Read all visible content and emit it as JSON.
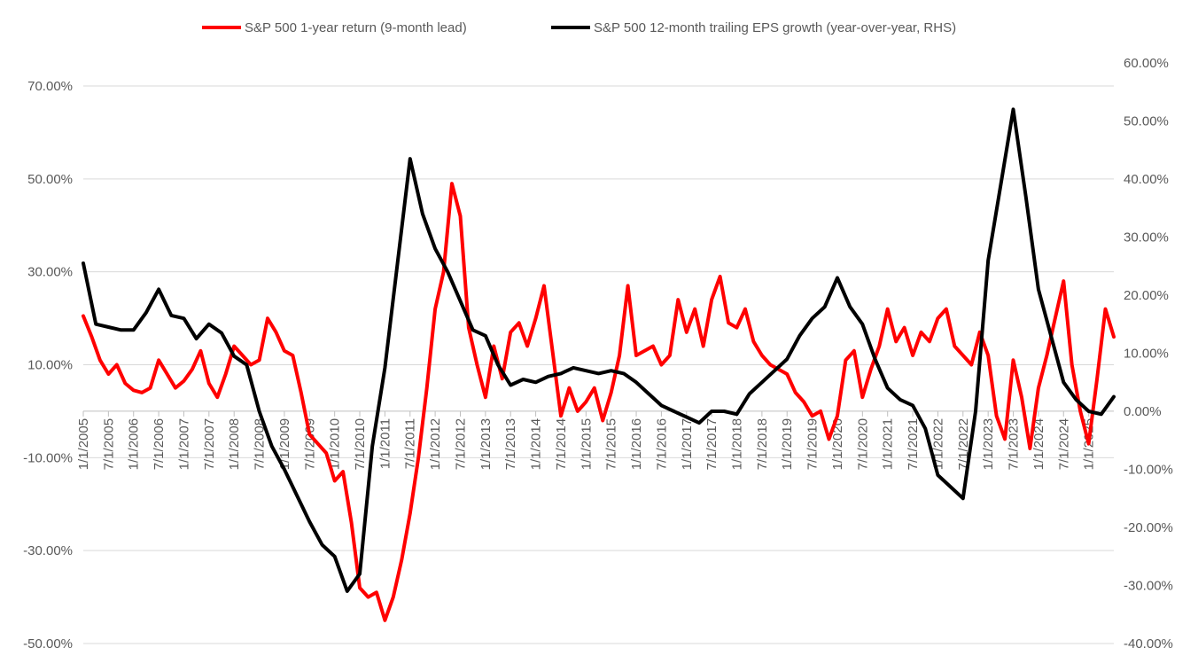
{
  "chart_data": {
    "type": "line",
    "title": "",
    "legend": {
      "position": "top"
    },
    "colors": {
      "red": "#ff0000",
      "black": "#000000",
      "grid": "#d9d9d9",
      "text": "#595959"
    },
    "y_left": {
      "min": -50,
      "max": 70,
      "ticks": [
        "70.00%",
        "50.00%",
        "30.00%",
        "10.00%",
        "-10.00%",
        "-30.00%",
        "-50.00%"
      ],
      "tick_values": [
        70,
        50,
        30,
        10,
        -10,
        -30,
        -50
      ]
    },
    "y_right": {
      "min": -40,
      "max": 60,
      "ticks": [
        "60.00%",
        "50.00%",
        "40.00%",
        "30.00%",
        "20.00%",
        "10.00%",
        "0.00%",
        "-10.00%",
        "-20.00%",
        "-30.00%",
        "-40.00%"
      ],
      "tick_values": [
        60,
        50,
        40,
        30,
        20,
        10,
        0,
        -10,
        -20,
        -30,
        -40
      ]
    },
    "x_ticks": [
      "1/1/2005",
      "7/1/2005",
      "1/1/2006",
      "7/1/2006",
      "1/1/2007",
      "7/1/2007",
      "1/1/2008",
      "7/1/2008",
      "1/1/2009",
      "7/1/2009",
      "1/1/2010",
      "7/1/2010",
      "1/1/2011",
      "7/1/2011",
      "1/1/2012",
      "7/1/2012",
      "1/1/2013",
      "7/1/2013",
      "1/1/2014",
      "7/1/2014",
      "1/1/2015",
      "7/1/2015",
      "1/1/2016",
      "7/1/2016",
      "1/1/2017",
      "7/1/2017",
      "1/1/2018",
      "7/1/2018",
      "1/1/2019",
      "7/1/2019",
      "1/1/2020",
      "7/1/2020",
      "1/1/2021",
      "7/1/2021",
      "1/1/2022",
      "7/1/2022",
      "1/1/2023",
      "7/1/2023",
      "1/1/2024",
      "7/1/2024",
      "1/1/2025"
    ],
    "series": [
      {
        "name": "S&P 500 1-year return (9-month lead)",
        "axis": "left",
        "color": "#ff0000",
        "points": [
          [
            "2005-01",
            20.5
          ],
          [
            "2005-03",
            16
          ],
          [
            "2005-05",
            11
          ],
          [
            "2005-07",
            8
          ],
          [
            "2005-09",
            10
          ],
          [
            "2005-11",
            6
          ],
          [
            "2006-01",
            4.5
          ],
          [
            "2006-03",
            4
          ],
          [
            "2006-05",
            5
          ],
          [
            "2006-07",
            11
          ],
          [
            "2006-09",
            8
          ],
          [
            "2006-11",
            5
          ],
          [
            "2007-01",
            6.5
          ],
          [
            "2007-03",
            9
          ],
          [
            "2007-05",
            13
          ],
          [
            "2007-07",
            6
          ],
          [
            "2007-09",
            3
          ],
          [
            "2007-11",
            8
          ],
          [
            "2008-01",
            14
          ],
          [
            "2008-03",
            12
          ],
          [
            "2008-05",
            10
          ],
          [
            "2008-07",
            11
          ],
          [
            "2008-09",
            20
          ],
          [
            "2008-11",
            17
          ],
          [
            "2009-01",
            13
          ],
          [
            "2009-03",
            12
          ],
          [
            "2009-05",
            4
          ],
          [
            "2009-07",
            -5
          ],
          [
            "2009-09",
            -7
          ],
          [
            "2009-11",
            -9
          ],
          [
            "2010-01",
            -15
          ],
          [
            "2010-03",
            -13
          ],
          [
            "2010-05",
            -24
          ],
          [
            "2010-07",
            -38
          ],
          [
            "2010-09",
            -40
          ],
          [
            "2010-11",
            -39
          ],
          [
            "2011-01",
            -45
          ],
          [
            "2011-03",
            -40
          ],
          [
            "2011-05",
            -32
          ],
          [
            "2011-07",
            -22
          ],
          [
            "2011-09",
            -10
          ],
          [
            "2011-11",
            5
          ],
          [
            "2012-01",
            22
          ],
          [
            "2012-03",
            30
          ],
          [
            "2012-05",
            49
          ],
          [
            "2012-07",
            42
          ],
          [
            "2012-09",
            18
          ],
          [
            "2012-11",
            10
          ],
          [
            "2013-01",
            3
          ],
          [
            "2013-03",
            14
          ],
          [
            "2013-05",
            7
          ],
          [
            "2013-07",
            17
          ],
          [
            "2013-09",
            19
          ],
          [
            "2013-11",
            14
          ],
          [
            "2014-01",
            20
          ],
          [
            "2014-03",
            27
          ],
          [
            "2014-05",
            13
          ],
          [
            "2014-07",
            -1
          ],
          [
            "2014-09",
            5
          ],
          [
            "2014-11",
            0
          ],
          [
            "2015-01",
            2
          ],
          [
            "2015-03",
            5
          ],
          [
            "2015-05",
            -2
          ],
          [
            "2015-07",
            4
          ],
          [
            "2015-09",
            12
          ],
          [
            "2015-11",
            27
          ],
          [
            "2016-01",
            12
          ],
          [
            "2016-03",
            13
          ],
          [
            "2016-05",
            14
          ],
          [
            "2016-07",
            10
          ],
          [
            "2016-09",
            12
          ],
          [
            "2016-11",
            24
          ],
          [
            "2017-01",
            17
          ],
          [
            "2017-03",
            22
          ],
          [
            "2017-05",
            14
          ],
          [
            "2017-07",
            24
          ],
          [
            "2017-09",
            29
          ],
          [
            "2017-11",
            19
          ],
          [
            "2018-01",
            18
          ],
          [
            "2018-03",
            22
          ],
          [
            "2018-05",
            15
          ],
          [
            "2018-07",
            12
          ],
          [
            "2018-09",
            10
          ],
          [
            "2018-11",
            9
          ],
          [
            "2019-01",
            8
          ],
          [
            "2019-03",
            4
          ],
          [
            "2019-05",
            2
          ],
          [
            "2019-07",
            -1
          ],
          [
            "2019-09",
            0
          ],
          [
            "2019-11",
            -6
          ],
          [
            "2020-01",
            -1
          ],
          [
            "2020-03",
            11
          ],
          [
            "2020-05",
            13
          ],
          [
            "2020-07",
            3
          ],
          [
            "2020-09",
            9
          ],
          [
            "2020-11",
            14
          ],
          [
            "2021-01",
            22
          ],
          [
            "2021-03",
            15
          ],
          [
            "2021-05",
            18
          ],
          [
            "2021-07",
            12
          ],
          [
            "2021-09",
            17
          ],
          [
            "2021-11",
            15
          ],
          [
            "2022-01",
            20
          ],
          [
            "2022-03",
            22
          ],
          [
            "2022-05",
            14
          ],
          [
            "2022-07",
            12
          ],
          [
            "2022-09",
            10
          ],
          [
            "2022-11",
            17
          ],
          [
            "2023-01",
            12
          ],
          [
            "2023-03",
            -1
          ],
          [
            "2023-05",
            -6
          ],
          [
            "2023-07",
            11
          ],
          [
            "2023-09",
            3
          ],
          [
            "2023-11",
            -8
          ],
          [
            "2024-01",
            5
          ],
          [
            "2024-03",
            12
          ],
          [
            "2024-05",
            20
          ],
          [
            "2024-07",
            28
          ],
          [
            "2024-09",
            10
          ],
          [
            "2024-11",
            0
          ],
          [
            "2025-01",
            -7
          ],
          [
            "2025-03",
            7
          ],
          [
            "2025-05",
            22
          ],
          [
            "2025-07",
            16
          ]
        ]
      },
      {
        "name": "S&P 500 12-month trailing EPS growth (year-over-year, RHS)",
        "axis": "right",
        "color": "#000000",
        "points": [
          [
            "2005-01",
            25.5
          ],
          [
            "2005-04",
            15
          ],
          [
            "2005-07",
            14.5
          ],
          [
            "2005-10",
            14
          ],
          [
            "2006-01",
            14
          ],
          [
            "2006-04",
            17
          ],
          [
            "2006-07",
            21
          ],
          [
            "2006-10",
            16.5
          ],
          [
            "2007-01",
            16
          ],
          [
            "2007-04",
            12.5
          ],
          [
            "2007-07",
            15
          ],
          [
            "2007-10",
            13.5
          ],
          [
            "2008-01",
            9.5
          ],
          [
            "2008-04",
            8
          ],
          [
            "2008-07",
            0
          ],
          [
            "2008-10",
            -6
          ],
          [
            "2009-01",
            -10
          ],
          [
            "2009-04",
            -14.5
          ],
          [
            "2009-07",
            -19
          ],
          [
            "2009-10",
            -23
          ],
          [
            "2010-01",
            -25
          ],
          [
            "2010-04",
            -31
          ],
          [
            "2010-07",
            -28
          ],
          [
            "2010-10",
            -6
          ],
          [
            "2011-01",
            7.5
          ],
          [
            "2011-04",
            25.5
          ],
          [
            "2011-07",
            43.5
          ],
          [
            "2011-10",
            34
          ],
          [
            "2012-01",
            28
          ],
          [
            "2012-04",
            24
          ],
          [
            "2012-07",
            19
          ],
          [
            "2012-10",
            14
          ],
          [
            "2013-01",
            13
          ],
          [
            "2013-04",
            8
          ],
          [
            "2013-07",
            4.5
          ],
          [
            "2013-10",
            5.5
          ],
          [
            "2014-01",
            5
          ],
          [
            "2014-04",
            6
          ],
          [
            "2014-07",
            6.5
          ],
          [
            "2014-10",
            7.5
          ],
          [
            "2015-01",
            7
          ],
          [
            "2015-04",
            6.5
          ],
          [
            "2015-07",
            7
          ],
          [
            "2015-10",
            6.5
          ],
          [
            "2016-01",
            5
          ],
          [
            "2016-04",
            3
          ],
          [
            "2016-07",
            1
          ],
          [
            "2016-10",
            0
          ],
          [
            "2017-01",
            -1
          ],
          [
            "2017-04",
            -2
          ],
          [
            "2017-07",
            0
          ],
          [
            "2017-10",
            0
          ],
          [
            "2018-01",
            -0.5
          ],
          [
            "2018-04",
            3
          ],
          [
            "2018-07",
            5
          ],
          [
            "2018-10",
            7
          ],
          [
            "2019-01",
            9
          ],
          [
            "2019-04",
            13
          ],
          [
            "2019-07",
            16
          ],
          [
            "2019-10",
            18
          ],
          [
            "2020-01",
            23
          ],
          [
            "2020-04",
            18
          ],
          [
            "2020-07",
            15
          ],
          [
            "2020-10",
            9
          ],
          [
            "2021-01",
            4
          ],
          [
            "2021-04",
            2
          ],
          [
            "2021-07",
            1
          ],
          [
            "2021-10",
            -3
          ],
          [
            "2022-01",
            -11
          ],
          [
            "2022-04",
            -13
          ],
          [
            "2022-07",
            -15
          ],
          [
            "2022-10",
            0
          ],
          [
            "2023-01",
            26
          ],
          [
            "2023-04",
            39
          ],
          [
            "2023-07",
            52
          ],
          [
            "2023-10",
            37
          ],
          [
            "2024-01",
            21
          ],
          [
            "2024-04",
            13
          ],
          [
            "2024-07",
            5
          ],
          [
            "2024-10",
            2
          ],
          [
            "2025-01",
            0
          ],
          [
            "2025-04",
            -0.5
          ],
          [
            "2025-07",
            2.5
          ]
        ]
      }
    ]
  }
}
